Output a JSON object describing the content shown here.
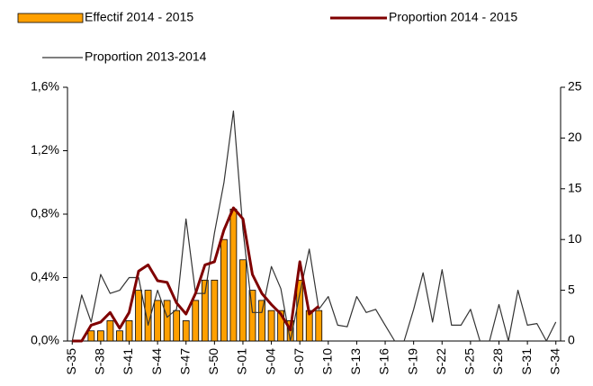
{
  "chart_data": {
    "type": "combo",
    "categories": [
      "S-35",
      null,
      null,
      "S-38",
      null,
      null,
      "S-41",
      null,
      null,
      "S-44",
      null,
      null,
      "S-47",
      null,
      null,
      "S-50",
      null,
      null,
      "S-01",
      null,
      null,
      "S-04",
      null,
      null,
      "S-07",
      null,
      null,
      "S-10",
      null,
      null,
      "S-13",
      null,
      null,
      "S-16",
      null,
      null,
      "S-19",
      null,
      null,
      "S-22",
      null,
      null,
      "S-25",
      null,
      null,
      "S-28",
      null,
      null,
      "S-31",
      null,
      null,
      "S-34"
    ],
    "series": [
      {
        "name": "Effectif 2014 - 2015",
        "type": "bar",
        "axis": "y2",
        "color": "#ffa000",
        "values": [
          0,
          0,
          1,
          1,
          2,
          1,
          2,
          5,
          5,
          4,
          4,
          3,
          2,
          4,
          6,
          6,
          10,
          13,
          8,
          5,
          4,
          3,
          3,
          2,
          6,
          3,
          3,
          null,
          null,
          null,
          null,
          null,
          null,
          null,
          null,
          null,
          null,
          null,
          null,
          null,
          null,
          null,
          null,
          null,
          null,
          null,
          null,
          null,
          null,
          null,
          null,
          null
        ]
      },
      {
        "name": "Proportion 2014 - 2015",
        "type": "line",
        "color": "#7f0000",
        "values": [
          0,
          0,
          0.1,
          0.12,
          0.18,
          0.08,
          0.18,
          0.44,
          0.48,
          0.38,
          0.37,
          0.24,
          0.17,
          0.3,
          0.48,
          0.5,
          0.7,
          0.84,
          0.77,
          0.42,
          0.3,
          0.23,
          0.17,
          0.07,
          0.5,
          0.17,
          0.22,
          null,
          null,
          null,
          null,
          null,
          null,
          null,
          null,
          null,
          null,
          null,
          null,
          null,
          null,
          null,
          null,
          null,
          null,
          null,
          null,
          null,
          null,
          null,
          null,
          null
        ]
      },
      {
        "name": "Proportion 2013-2014",
        "type": "line",
        "color": "#333333",
        "values": [
          0,
          0.29,
          0.12,
          0.42,
          0.3,
          0.32,
          0.4,
          0.4,
          0.1,
          0.32,
          0.15,
          0.2,
          0.77,
          0.3,
          0.3,
          0.68,
          1.0,
          1.45,
          0.7,
          0.18,
          0.18,
          0.47,
          0.33,
          0,
          0.3,
          0.58,
          0.2,
          0.28,
          0.1,
          0.09,
          0.28,
          0.18,
          0.2,
          0.1,
          0,
          0,
          0.2,
          0.43,
          0.12,
          0.45,
          0.1,
          0.1,
          0.2,
          0,
          0,
          0.23,
          0,
          0.32,
          0.1,
          0.11,
          0,
          0.12
        ]
      }
    ],
    "ylim": [
      0,
      1.6
    ],
    "yticks": [
      {
        "value": 0,
        "label": "0,0%"
      },
      {
        "value": 0.4,
        "label": "0,4%"
      },
      {
        "value": 0.8,
        "label": "0,8%"
      },
      {
        "value": 1.2,
        "label": "1,2%"
      },
      {
        "value": 1.6,
        "label": "1,6%"
      }
    ],
    "y2lim": [
      0,
      25
    ],
    "y2ticks": [
      0,
      5,
      10,
      15,
      20,
      25
    ],
    "grid": false,
    "legend": "top"
  }
}
